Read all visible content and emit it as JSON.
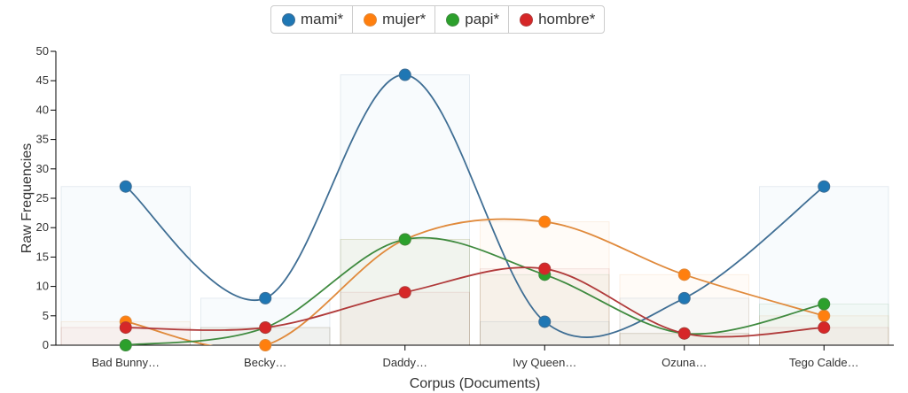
{
  "chart_data": {
    "type": "line",
    "title": "",
    "xlabel": "Corpus (Documents)",
    "ylabel": "Raw Frequencies",
    "ylim": [
      0,
      50
    ],
    "yticks": [
      0,
      5,
      10,
      15,
      20,
      25,
      30,
      35,
      40,
      45,
      50
    ],
    "categories": [
      "Bad Bunny…",
      "Becky…",
      "Daddy…",
      "Ivy Queen…",
      "Ozuna…",
      "Tego Calde…"
    ],
    "legend_position": "top-center",
    "series": [
      {
        "name": "mami*",
        "color": "#1f77b4",
        "line": "#3f6e94",
        "values": [
          27,
          8,
          46,
          4,
          8,
          27
        ]
      },
      {
        "name": "mujer*",
        "color": "#ff7f0e",
        "line": "#e08a3c",
        "values": [
          4,
          0,
          18,
          21,
          12,
          5
        ]
      },
      {
        "name": "papi*",
        "color": "#2ca02c",
        "line": "#3f8a3f",
        "values": [
          0,
          3,
          18,
          12,
          2,
          7
        ]
      },
      {
        "name": "hombre*",
        "color": "#d62728",
        "line": "#b03a3a",
        "values": [
          3,
          3,
          9,
          13,
          2,
          3
        ]
      }
    ]
  }
}
